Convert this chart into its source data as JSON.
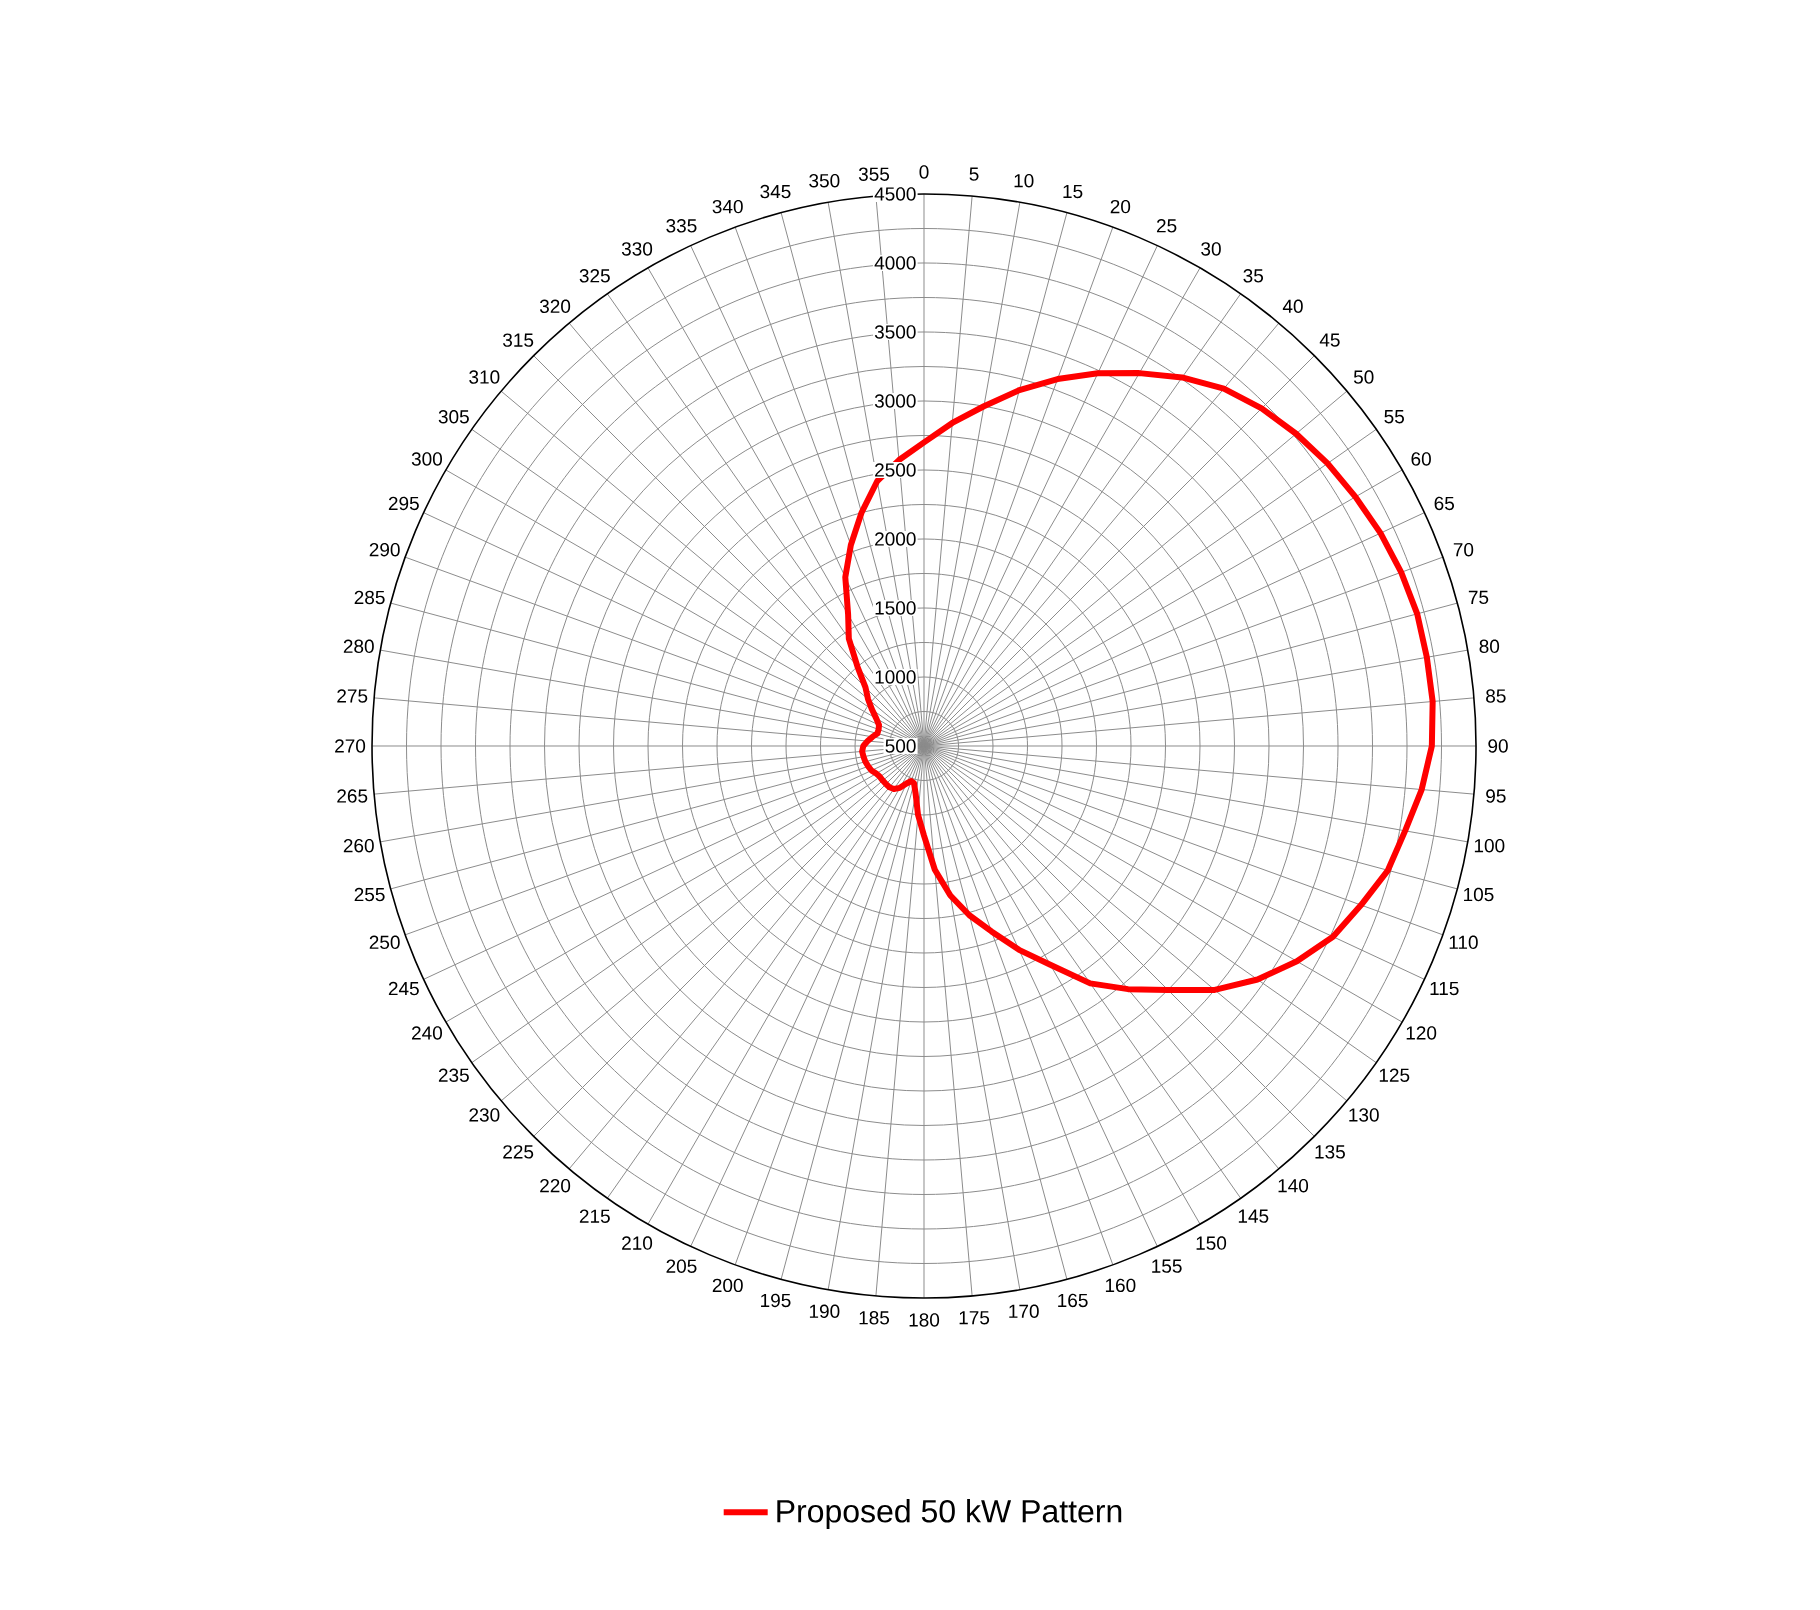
{
  "chart_data": {
    "type": "radar",
    "categories": [
      "0",
      "5",
      "10",
      "15",
      "20",
      "25",
      "30",
      "35",
      "40",
      "45",
      "50",
      "55",
      "60",
      "65",
      "70",
      "75",
      "80",
      "85",
      "90",
      "95",
      "100",
      "105",
      "110",
      "115",
      "120",
      "125",
      "130",
      "135",
      "140",
      "145",
      "150",
      "155",
      "160",
      "165",
      "170",
      "175",
      "180",
      "185",
      "190",
      "195",
      "200",
      "205",
      "210",
      "215",
      "220",
      "225",
      "230",
      "235",
      "240",
      "245",
      "250",
      "255",
      "260",
      "265",
      "270",
      "275",
      "280",
      "285",
      "290",
      "295",
      "300",
      "305",
      "310",
      "315",
      "320",
      "325",
      "330",
      "335",
      "340",
      "345",
      "350",
      "355"
    ],
    "series": [
      {
        "name": "Proposed 50 kW Pattern",
        "color": "#ff0000",
        "values": [
          2700,
          2850,
          3000,
          3170,
          3330,
          3480,
          3620,
          3760,
          3880,
          3960,
          4020,
          4070,
          4110,
          4150,
          4180,
          4200,
          4200,
          4200,
          4180,
          4120,
          4040,
          3980,
          3870,
          3770,
          3620,
          3450,
          3250,
          3000,
          2800,
          2600,
          2330,
          2130,
          1930,
          1770,
          1600,
          1400,
          1150,
          1000,
          850,
          780,
          770,
          800,
          850,
          880,
          890,
          890,
          890,
          890,
          900,
          920,
          930,
          940,
          945,
          950,
          940,
          910,
          880,
          850,
          850,
          860,
          900,
          960,
          1030,
          1100,
          1250,
          1450,
          1600,
          1850,
          2050,
          2250,
          2450,
          2580
        ]
      }
    ],
    "ylim": [
      500,
      4500
    ],
    "yticks": [
      500,
      1000,
      1500,
      2000,
      2500,
      3000,
      3500,
      4000,
      4500
    ],
    "grid": true,
    "legend": "bottom",
    "marker": "none",
    "line_style": "solid"
  }
}
